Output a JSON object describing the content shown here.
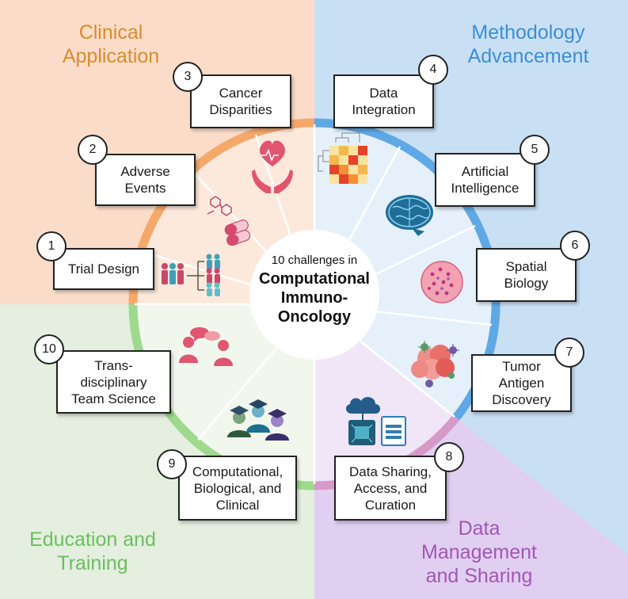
{
  "center": {
    "subtitle": "10 challenges in",
    "title": "Computational\nImmuno-\nOncology"
  },
  "categories": {
    "clinical": {
      "label": "Clinical\nApplication",
      "color": "#d98c2f"
    },
    "methodology": {
      "label": "Methodology\nAdvancement",
      "color": "#3c8ed4"
    },
    "data": {
      "label": "Data\nManagement\nand Sharing",
      "color": "#a257b3"
    },
    "education": {
      "label": "Education and\nTraining",
      "color": "#6cbe5f"
    }
  },
  "challenges": [
    {
      "num": "1",
      "label": "Trial Design"
    },
    {
      "num": "2",
      "label": "Adverse\nEvents"
    },
    {
      "num": "3",
      "label": "Cancer\nDisparities"
    },
    {
      "num": "4",
      "label": "Data\nIntegration"
    },
    {
      "num": "5",
      "label": "Artificial\nIntelligence"
    },
    {
      "num": "6",
      "label": "Spatial\nBiology"
    },
    {
      "num": "7",
      "label": "Tumor\nAntigen\nDiscovery"
    },
    {
      "num": "8",
      "label": "Data Sharing,\nAccess, and\nCuration"
    },
    {
      "num": "9",
      "label": "Computational,\nBiological, and\nClinical"
    },
    {
      "num": "10",
      "label": "Trans-\ndisciplinary\nTeam Science"
    }
  ],
  "icons": [
    "clinical-trial-people-icon",
    "drug-pills-icon",
    "heart-in-hands-icon",
    "heatmap-dendrogram-icon",
    "brain-icon",
    "tissue-cell-icon",
    "tumor-cells-icon",
    "cloud-database-icon",
    "graduates-icon",
    "team-discussion-icon"
  ]
}
